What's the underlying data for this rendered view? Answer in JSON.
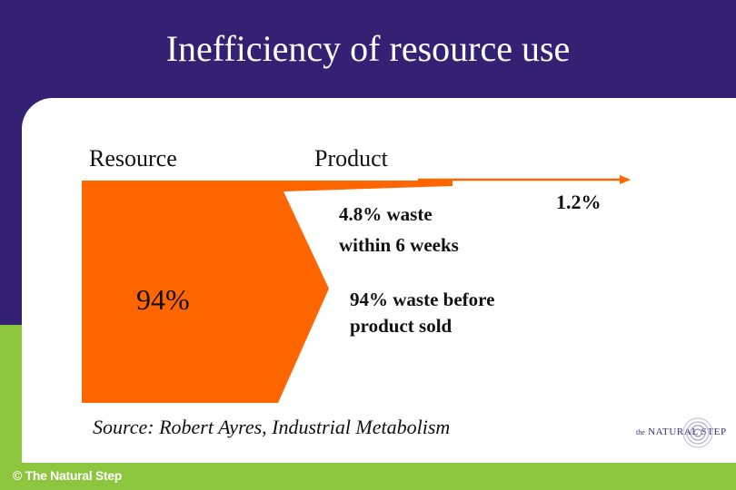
{
  "title": "Inefficiency of resource use",
  "labels": {
    "resource": "Resource",
    "product": "Product",
    "resource_percent": "94%",
    "waste_early_line1": "4.8% waste",
    "waste_early_line2": "within 6 weeks",
    "waste_before_line1": "94% waste before",
    "waste_before_line2": "product sold",
    "product_percent": "1.2%"
  },
  "source": "Source: Robert Ayres, Industrial Metabolism",
  "footer": {
    "copyright": "© The Natural Step",
    "logo_the": "the",
    "logo_name": "NATURAL STEP"
  },
  "colors": {
    "header_bg": "#352174",
    "footer_bg": "#8cc63f",
    "flow": "#ff6600",
    "product_arrow": "#ff6600",
    "text": "#111111"
  }
}
